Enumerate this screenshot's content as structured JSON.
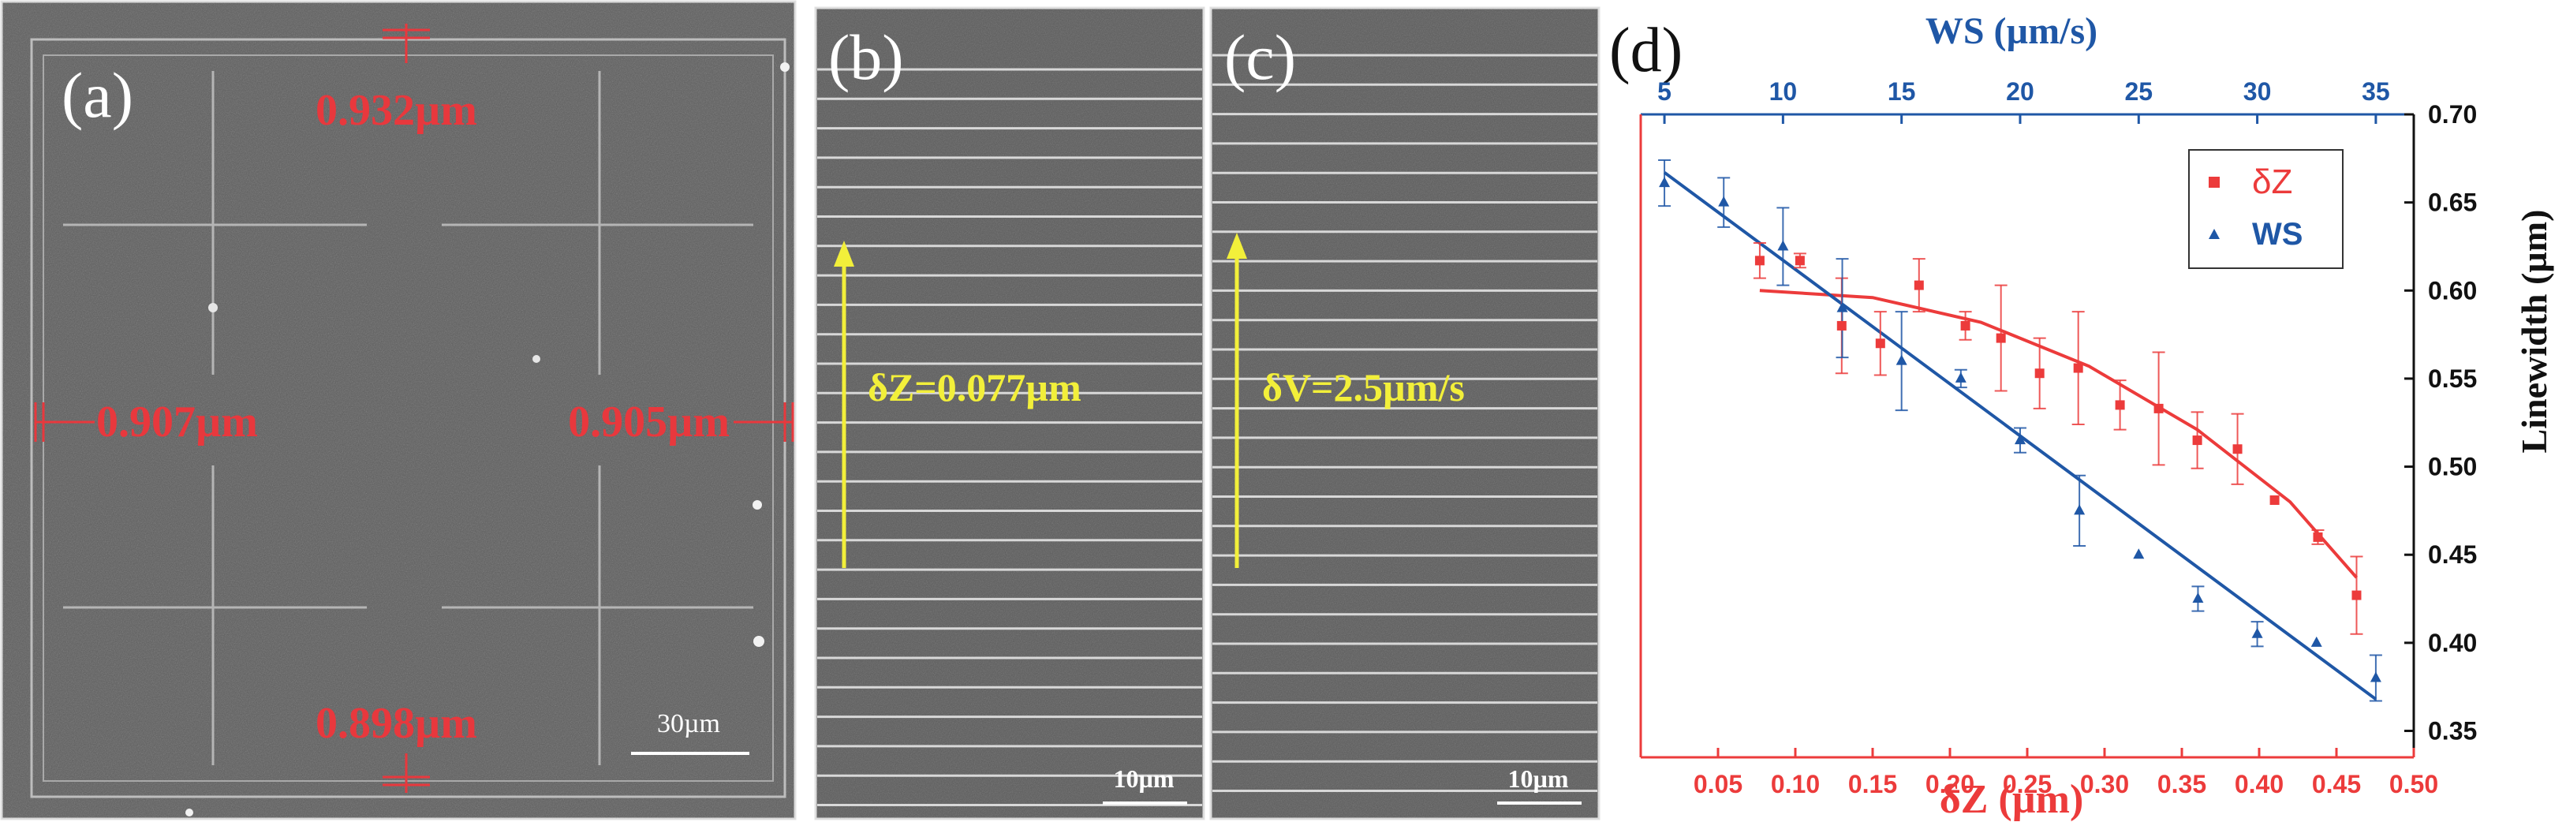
{
  "panel_a": {
    "label": "(a)",
    "meas_top": "0.932µm",
    "meas_left": "0.907µm",
    "meas_right": "0.905µm",
    "meas_bottom": "0.898µm",
    "scale": "30µm"
  },
  "panel_b": {
    "label": "(b)",
    "arrow_text": "δZ=0.077µm",
    "scale": "10µm"
  },
  "panel_c": {
    "label": "(c)",
    "arrow_text": "δV=2.5µm/s",
    "scale": "10µm"
  },
  "colors": {
    "measure_red": "#e8383d",
    "arrow_yellow": "#f2ef3a",
    "dz_red": "#ec3b3b",
    "ws_blue": "#1f57a6"
  },
  "chart_data": {
    "type": "scatter",
    "label": "(d)",
    "title": "",
    "xlabel": "δZ (µm)",
    "x2label": "WS (µm/s)",
    "ylabel": "Linewidth (µm)",
    "xlim": [
      0.0,
      0.5
    ],
    "x2lim": [
      4.0,
      36.6
    ],
    "ylim": [
      0.335,
      0.7
    ],
    "xticks": [
      "0.05",
      "0.10",
      "0.15",
      "0.20",
      "0.25",
      "0.30",
      "0.35",
      "0.40",
      "0.45",
      "0.50"
    ],
    "x2ticks": [
      "5",
      "10",
      "15",
      "20",
      "25",
      "30",
      "35"
    ],
    "yticks": [
      "0.35",
      "0.40",
      "0.45",
      "0.50",
      "0.55",
      "0.60",
      "0.65",
      "0.70"
    ],
    "legend_position": "top-right",
    "series": [
      {
        "name": "δZ",
        "axis": "bottom",
        "marker": "square",
        "color": "#ec3b3b",
        "x": [
          0.077,
          0.103,
          0.13,
          0.155,
          0.18,
          0.21,
          0.233,
          0.258,
          0.283,
          0.31,
          0.335,
          0.36,
          0.386,
          0.41,
          0.438,
          0.463
        ],
        "y": [
          0.617,
          0.617,
          0.58,
          0.57,
          0.603,
          0.58,
          0.573,
          0.553,
          0.556,
          0.535,
          0.533,
          0.515,
          0.51,
          0.481,
          0.46,
          0.427
        ],
        "err": [
          0.01,
          0.004,
          0.027,
          0.018,
          0.015,
          0.008,
          0.03,
          0.02,
          0.032,
          0.014,
          0.032,
          0.016,
          0.02,
          0.0,
          0.004,
          0.022
        ],
        "fit_x": [
          0.077,
          0.15,
          0.22,
          0.29,
          0.36,
          0.42,
          0.463
        ],
        "fit_y": [
          0.6,
          0.596,
          0.582,
          0.557,
          0.521,
          0.48,
          0.437
        ]
      },
      {
        "name": "WS",
        "axis": "top",
        "marker": "triangle",
        "color": "#1f57a6",
        "x": [
          5,
          7.5,
          10,
          12.5,
          15,
          17.5,
          20,
          22.5,
          25,
          27.5,
          30,
          32.5,
          35
        ],
        "y": [
          0.661,
          0.65,
          0.625,
          0.59,
          0.56,
          0.55,
          0.515,
          0.475,
          0.45,
          0.425,
          0.405,
          0.4,
          0.38
        ],
        "err": [
          0.013,
          0.014,
          0.022,
          0.028,
          0.028,
          0.005,
          0.007,
          0.02,
          0.0,
          0.007,
          0.007,
          0.0,
          0.013
        ],
        "fit_x": [
          5,
          35
        ],
        "fit_y": [
          0.667,
          0.368
        ]
      }
    ]
  }
}
